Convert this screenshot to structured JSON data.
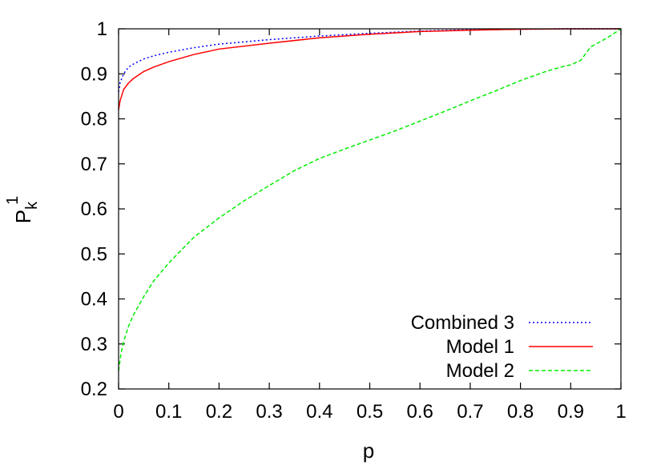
{
  "chart_data": {
    "type": "line",
    "xlabel": "p",
    "ylabel": "P_k^1",
    "ylabel_main": "P",
    "ylabel_sub": "k",
    "ylabel_sup": "1",
    "xlim": [
      0,
      1
    ],
    "ylim": [
      0.2,
      1
    ],
    "xticks": [
      0,
      0.1,
      0.2,
      0.3,
      0.4,
      0.5,
      0.6,
      0.7,
      0.8,
      0.9,
      1
    ],
    "xtick_labels": [
      "0",
      "0.1",
      "0.2",
      "0.3",
      "0.4",
      "0.5",
      "0.6",
      "0.7",
      "0.8",
      "0.9",
      "1"
    ],
    "yticks": [
      0.2,
      0.3,
      0.4,
      0.5,
      0.6,
      0.7,
      0.8,
      0.9,
      1
    ],
    "ytick_labels": [
      "0.2",
      "0.3",
      "0.4",
      "0.5",
      "0.6",
      "0.7",
      "0.8",
      "0.9",
      "1"
    ],
    "grid": false,
    "legend_position": "bottom-right",
    "series": [
      {
        "name": "Combined 3",
        "color": "#0000ff",
        "dash": "dotted",
        "points": [
          [
            0,
            0.86
          ],
          [
            0.003,
            0.88
          ],
          [
            0.01,
            0.9
          ],
          [
            0.02,
            0.915
          ],
          [
            0.03,
            0.922
          ],
          [
            0.05,
            0.933
          ],
          [
            0.07,
            0.94
          ],
          [
            0.1,
            0.948
          ],
          [
            0.15,
            0.958
          ],
          [
            0.2,
            0.966
          ],
          [
            0.3,
            0.976
          ],
          [
            0.4,
            0.984
          ],
          [
            0.5,
            0.99
          ],
          [
            0.6,
            0.995
          ],
          [
            0.7,
            0.998
          ],
          [
            0.8,
            0.999
          ],
          [
            0.9,
            1.0
          ],
          [
            1.0,
            1.0
          ]
        ]
      },
      {
        "name": "Model 1",
        "color": "#ff0000",
        "dash": "solid",
        "points": [
          [
            0,
            0.82
          ],
          [
            0.003,
            0.84
          ],
          [
            0.01,
            0.865
          ],
          [
            0.02,
            0.88
          ],
          [
            0.03,
            0.89
          ],
          [
            0.05,
            0.905
          ],
          [
            0.07,
            0.915
          ],
          [
            0.1,
            0.927
          ],
          [
            0.15,
            0.943
          ],
          [
            0.2,
            0.955
          ],
          [
            0.3,
            0.968
          ],
          [
            0.4,
            0.98
          ],
          [
            0.5,
            0.988
          ],
          [
            0.6,
            0.994
          ],
          [
            0.7,
            0.997
          ],
          [
            0.8,
            0.999
          ],
          [
            0.9,
            1.0
          ],
          [
            1.0,
            1.0
          ]
        ]
      },
      {
        "name": "Model 2",
        "color": "#00ee00",
        "dash": "dashed",
        "points": [
          [
            0,
            0.24
          ],
          [
            0.005,
            0.28
          ],
          [
            0.01,
            0.305
          ],
          [
            0.02,
            0.34
          ],
          [
            0.03,
            0.365
          ],
          [
            0.05,
            0.405
          ],
          [
            0.07,
            0.44
          ],
          [
            0.1,
            0.48
          ],
          [
            0.15,
            0.537
          ],
          [
            0.2,
            0.58
          ],
          [
            0.25,
            0.618
          ],
          [
            0.3,
            0.652
          ],
          [
            0.35,
            0.685
          ],
          [
            0.4,
            0.712
          ],
          [
            0.45,
            0.733
          ],
          [
            0.5,
            0.753
          ],
          [
            0.55,
            0.773
          ],
          [
            0.6,
            0.795
          ],
          [
            0.65,
            0.817
          ],
          [
            0.7,
            0.84
          ],
          [
            0.75,
            0.862
          ],
          [
            0.8,
            0.885
          ],
          [
            0.85,
            0.905
          ],
          [
            0.88,
            0.915
          ],
          [
            0.9,
            0.92
          ],
          [
            0.92,
            0.93
          ],
          [
            0.93,
            0.945
          ],
          [
            0.94,
            0.96
          ],
          [
            0.96,
            0.972
          ],
          [
            0.98,
            0.985
          ],
          [
            1.0,
            1.0
          ]
        ]
      }
    ]
  }
}
